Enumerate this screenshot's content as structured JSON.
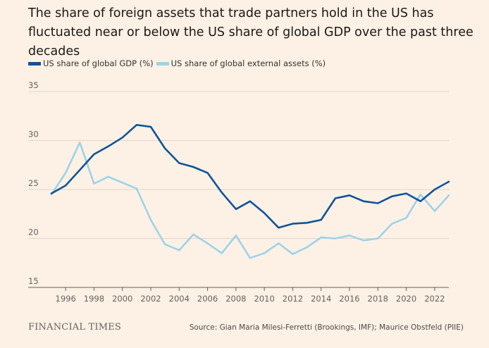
{
  "title": "The share of foreign assets that trade partners hold in the US has fluctuated near or below the US share of global GDP over the past three decades",
  "chart_data": {
    "type": "line",
    "ylim": [
      15,
      35
    ],
    "xlim": [
      1995,
      2023
    ],
    "yticks": [
      15,
      20,
      25,
      30,
      35
    ],
    "xticks": [
      1996,
      1998,
      2000,
      2002,
      2004,
      2006,
      2008,
      2010,
      2012,
      2014,
      2016,
      2018,
      2020,
      2022
    ],
    "grid": "horizontal",
    "legend_position": "top-left",
    "x": [
      1995,
      1996,
      1997,
      1998,
      1999,
      2000,
      2001,
      2002,
      2003,
      2004,
      2005,
      2006,
      2007,
      2008,
      2009,
      2010,
      2011,
      2012,
      2013,
      2014,
      2015,
      2016,
      2017,
      2018,
      2019,
      2020,
      2021,
      2022,
      2023
    ],
    "series": [
      {
        "name": "US share of global GDP (%)",
        "color": "#0f5499",
        "values": [
          24.6,
          25.4,
          27.0,
          28.6,
          29.4,
          30.3,
          31.6,
          31.4,
          29.2,
          27.7,
          27.3,
          26.7,
          24.7,
          23.0,
          23.8,
          22.6,
          21.1,
          21.5,
          21.6,
          21.9,
          24.1,
          24.4,
          23.8,
          23.6,
          24.3,
          24.6,
          23.8,
          25.0,
          25.8
        ]
      },
      {
        "name": "US share of global external assets (%)",
        "color": "#9dd3e8",
        "values": [
          24.5,
          26.7,
          29.8,
          25.6,
          26.3,
          25.7,
          25.1,
          21.9,
          19.4,
          18.8,
          20.4,
          19.5,
          18.5,
          20.3,
          18.0,
          18.5,
          19.5,
          18.4,
          19.1,
          20.1,
          20.0,
          20.3,
          19.8,
          20.0,
          21.5,
          22.1,
          24.5,
          22.8,
          24.4
        ]
      }
    ]
  },
  "footer": {
    "logo": "FINANCIAL TIMES",
    "source": "Source: Gian Maria Milesi-Ferretti (Brookings, IMF); Maurice Obstfeld (PIIE)"
  }
}
